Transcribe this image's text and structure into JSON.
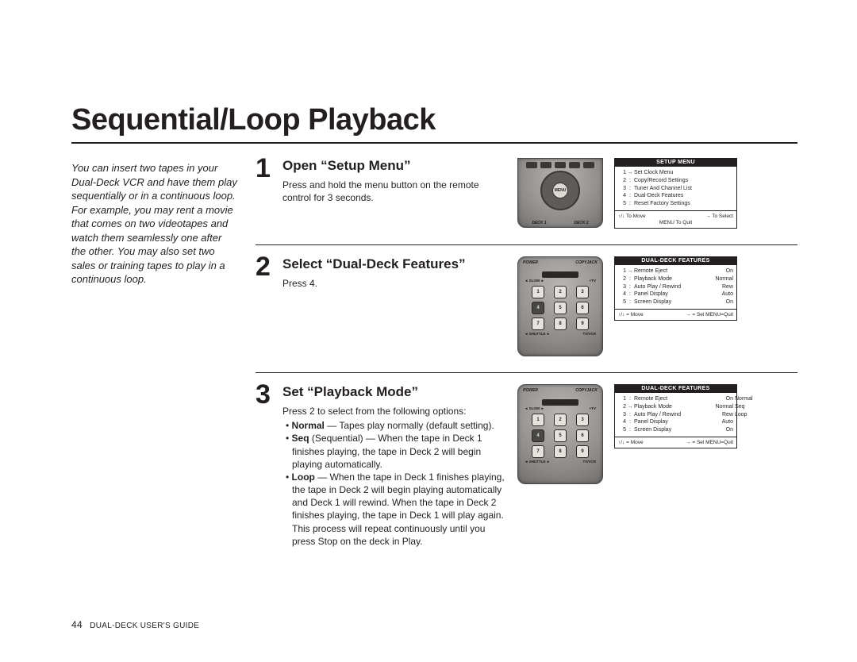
{
  "page": {
    "title": "Sequential/Loop Playback",
    "number": "44",
    "footer": "DUAL-DECK USER'S GUIDE"
  },
  "intro": "You can insert two tapes in your Dual-Deck VCR and have them play sequentially or in a continuous loop. For example, you may rent a movie that comes on two videotapes and watch them seamlessly one after the other. You may also set two sales or training tapes to play in a continuous loop.",
  "steps": [
    {
      "n": "1",
      "h": "Open “Setup Menu”",
      "p": [
        "Press and hold the menu button on the remote control for 3 seconds."
      ]
    },
    {
      "n": "2",
      "h": "Select “Dual-Deck Features”",
      "p": [
        "Press 4."
      ]
    },
    {
      "n": "3",
      "h": "Set “Playback Mode”",
      "p": [
        "Press 2 to select from the following options:"
      ],
      "li": [
        "<b>Normal</b> — Tapes play normally (default setting).",
        "<b>Seq</b> (Sequential) — When the tape in Deck 1 finishes playing, the tape in Deck 2 will begin playing automatically.",
        "<b>Loop</b> — When the tape in Deck 1 finishes playing, the tape in Deck 2 will begin playing automatically and Deck 1 will rewind. When the tape in Deck 2 finishes playing, the tape in Deck 1 will play again. This process will repeat continuously until you press Stop on the deck in Play."
      ]
    }
  ],
  "menus": {
    "setup": {
      "hdr": "SETUP MENU",
      "items": [
        {
          "n": "1",
          "arrow": "→",
          "lbl": "Set Clock Menu"
        },
        {
          "n": "2",
          "arrow": ":",
          "lbl": "Copy/Record Settings"
        },
        {
          "n": "3",
          "arrow": ":",
          "lbl": "Tuner And Channel List"
        },
        {
          "n": "4",
          "arrow": ":",
          "lbl": "Dual-Deck Features"
        },
        {
          "n": "5",
          "arrow": ":",
          "lbl": "Reset Factory Settings"
        }
      ],
      "footer": {
        "l": "↑/↓  To Move",
        "r": "→  To Select",
        "c": "MENU To Quit"
      }
    },
    "dual1": {
      "hdr": "DUAL-DECK FEATURES",
      "items": [
        {
          "n": "1",
          "arrow": "→",
          "lbl": "Remote Eject",
          "val": "On"
        },
        {
          "n": "2",
          "arrow": ":",
          "lbl": "Playback Mode",
          "val": "Normal"
        },
        {
          "n": "3",
          "arrow": ":",
          "lbl": "Auto Play / Rewind",
          "val": "Rew"
        },
        {
          "n": "4",
          "arrow": ":",
          "lbl": "Panel Display",
          "val": "Auto"
        },
        {
          "n": "5",
          "arrow": ":",
          "lbl": "Screen Display",
          "val": "On"
        }
      ],
      "footer": {
        "l": "↑/↓ = Move",
        "r": "→ = Sel     MENU=Quit"
      }
    },
    "dual2": {
      "hdr": "DUAL-DECK FEATURES",
      "items": [
        {
          "n": "1",
          "arrow": ":",
          "lbl": "Remote Eject",
          "val": "On",
          "alt": "Normal"
        },
        {
          "n": "2",
          "arrow": "→",
          "lbl": "Playback Mode",
          "val": "Normal",
          "alt": "Seq"
        },
        {
          "n": "3",
          "arrow": ":",
          "lbl": "Auto Play / Rewind",
          "val": "Rew",
          "alt": "Loop"
        },
        {
          "n": "4",
          "arrow": ":",
          "lbl": "Panel Display",
          "val": "Auto"
        },
        {
          "n": "5",
          "arrow": ":",
          "lbl": "Screen Display",
          "val": "On"
        }
      ],
      "footer": {
        "l": "↑/↓ = Move",
        "r": "→ = Sel     MENU=Quit"
      }
    }
  },
  "remote": {
    "deck1": "DECK 1",
    "deck2": "DECK 2",
    "power": "POWER",
    "copyjack": "COPYJACK",
    "menu": "MENU",
    "keys": [
      "1",
      "2",
      "3",
      "4",
      "5",
      "6",
      "7",
      "8",
      "9"
    ]
  }
}
